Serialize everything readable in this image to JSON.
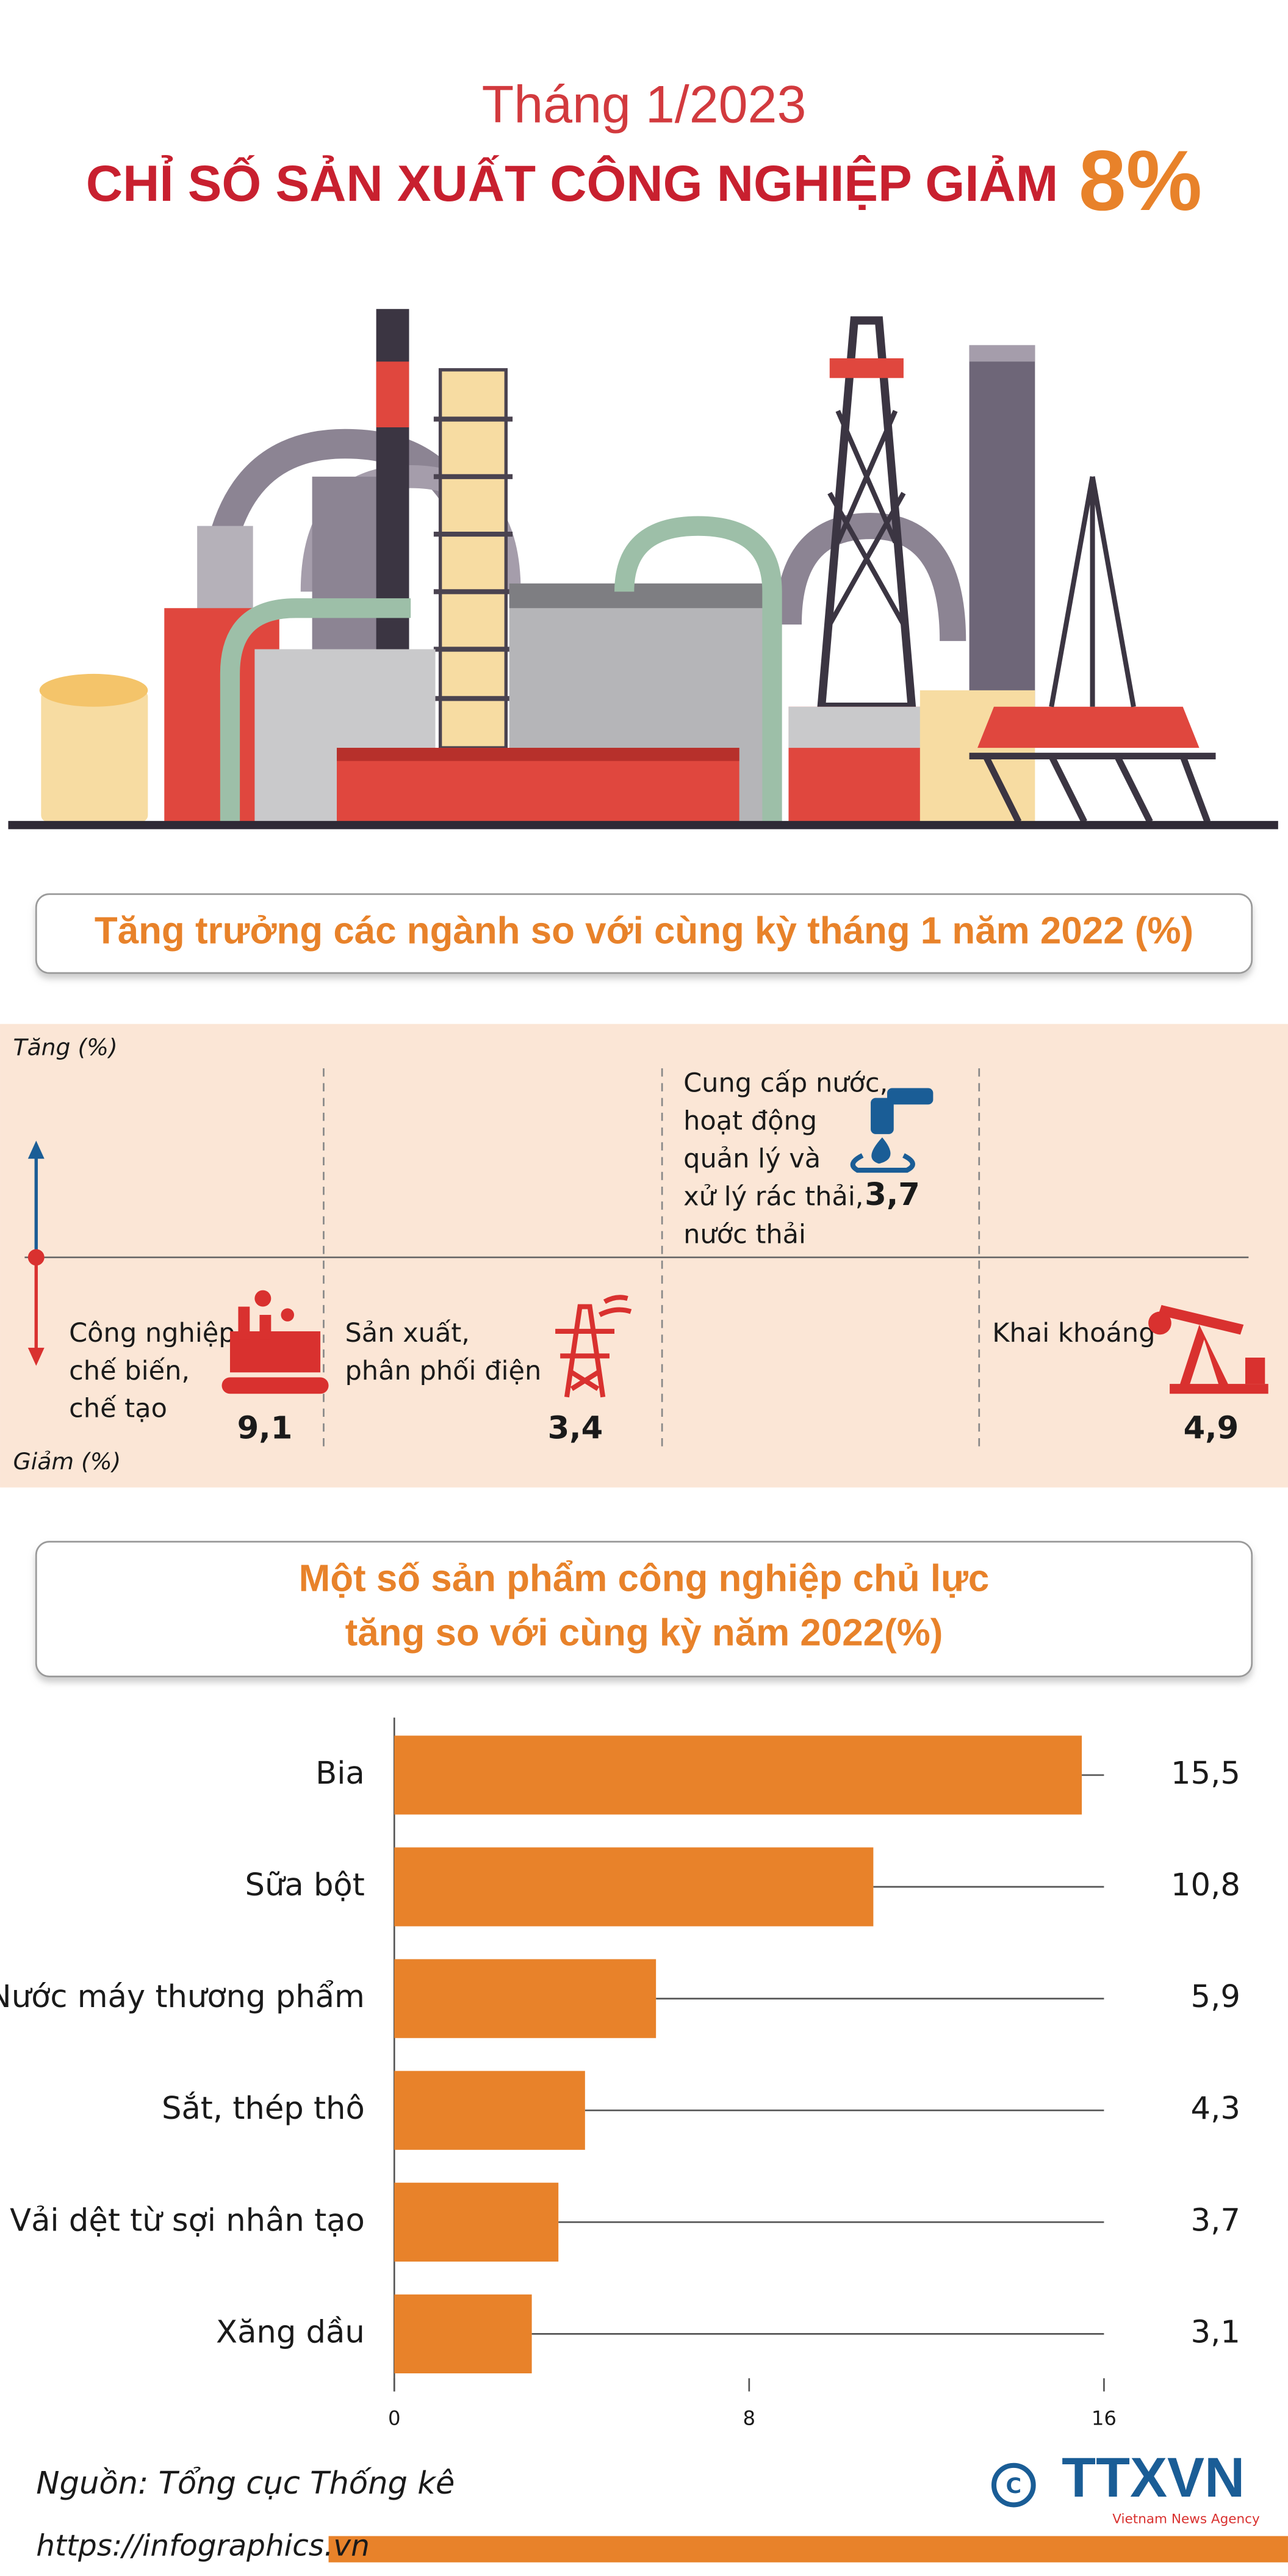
{
  "header": {
    "subtitle": "Tháng 1/2023",
    "title": "CHỈ SỐ SẢN XUẤT CÔNG NGHIỆP GIẢM",
    "highlight": "8%"
  },
  "sector_growth": {
    "title": "Tăng trưởng các ngành so với cùng kỳ tháng 1 năm 2022 (%)",
    "up_label": "Tăng (%)",
    "down_label": "Giảm (%)",
    "sectors": [
      {
        "label": [
          "Công nghiệp",
          "chế biến,",
          "chế tạo"
        ],
        "value": "9,1",
        "direction": "down"
      },
      {
        "label": [
          "Sản xuất,",
          "phân phối điện"
        ],
        "value": "3,4",
        "direction": "down"
      },
      {
        "label": [
          "Cung cấp nước,",
          "hoạt động",
          "quản lý và",
          "xử lý rác thải,",
          "nước thải"
        ],
        "value": "3,7",
        "direction": "up"
      },
      {
        "label": [
          "Khai khoáng"
        ],
        "value": "4,9",
        "direction": "down"
      }
    ]
  },
  "chart_data": {
    "type": "bar",
    "orientation": "horizontal",
    "title": [
      "Một số sản phẩm công nghiệp chủ lực",
      "tăng so với cùng kỳ năm 2022(%)"
    ],
    "categories": [
      "Bia",
      "Sữa bột",
      "Nước máy thương phẩm",
      "Sắt, thép thô",
      "Vải dệt từ sợi nhân tạo",
      "Xăng dầu"
    ],
    "values": [
      15.5,
      10.8,
      5.9,
      4.3,
      3.7,
      3.1
    ],
    "value_labels": [
      "15,5",
      "10,8",
      "5,9",
      "4,3",
      "3,7",
      "3,1"
    ],
    "color": "#e8822a",
    "xlim": [
      0,
      16
    ],
    "xticks": [
      0,
      8,
      16
    ]
  },
  "footer": {
    "source": "Nguồn: Tổng cục Thống kê",
    "url": "https://infographics.vn",
    "logo": "TTXVN",
    "logo_sub": "Vietnam News Agency"
  }
}
